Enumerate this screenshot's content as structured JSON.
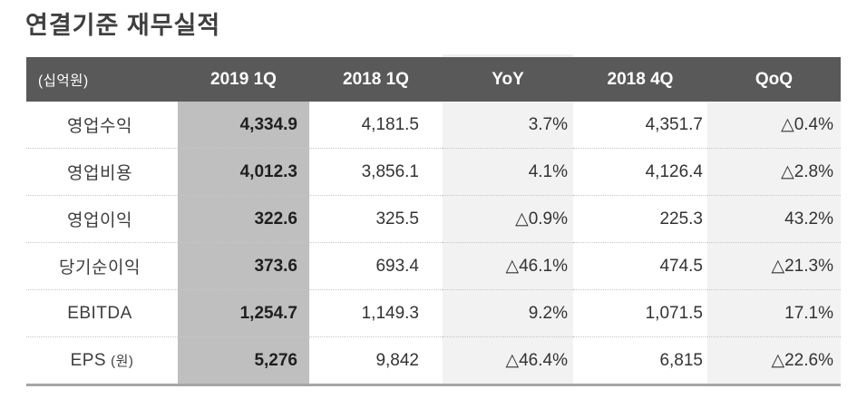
{
  "page": {
    "title": "연결기준 재무실적"
  },
  "table": {
    "unit_label": "(십억원)",
    "columns": [
      "2019 1Q",
      "2018 1Q",
      "YoY",
      "2018 4Q",
      "QoQ"
    ],
    "rows": [
      {
        "label": "영업수익",
        "label_note": "",
        "values": [
          "4,334.9",
          "4,181.5",
          "3.7%",
          "4,351.7",
          "△0.4%"
        ]
      },
      {
        "label": "영업비용",
        "label_note": "",
        "values": [
          "4,012.3",
          "3,856.1",
          "4.1%",
          "4,126.4",
          "△2.8%"
        ]
      },
      {
        "label": "영업이익",
        "label_note": "",
        "values": [
          "322.6",
          "325.5",
          "△0.9%",
          "225.3",
          "43.2%"
        ]
      },
      {
        "label": "당기순이익",
        "label_note": "",
        "values": [
          "373.6",
          "693.4",
          "△46.1%",
          "474.5",
          "△21.3%"
        ]
      },
      {
        "label": "EBITDA",
        "label_note": "",
        "values": [
          "1,254.7",
          "1,149.3",
          "9.2%",
          "1,071.5",
          "17.1%"
        ]
      },
      {
        "label": "EPS",
        "label_note": "(원)",
        "values": [
          "5,276",
          "9,842",
          "△46.4%",
          "6,815",
          "△22.6%"
        ]
      }
    ]
  },
  "colors": {
    "header_bg": "#595959",
    "header_text": "#ffffff",
    "highlight_column_bg": "#bfbfbf",
    "shaded_column_bg": "#f2f2f2",
    "title_text": "#3f3f3f",
    "body_text": "#333333",
    "bottom_border": "#a6a6a6"
  }
}
